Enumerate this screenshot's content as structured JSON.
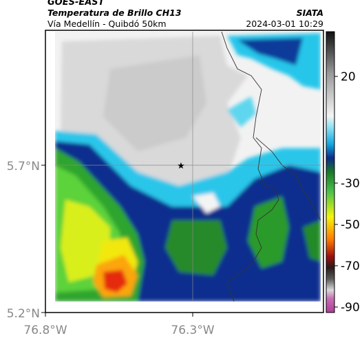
{
  "header": {
    "product": "GOES-EAST",
    "title": "Temperatura de Brillo CH13",
    "source": "SIATA",
    "region": "Vía Medellín - Quibdó 50km",
    "datetime": "2024-03-01 10:29"
  },
  "axes": {
    "x_ticks": [
      "76.8°W",
      "76.3°W"
    ],
    "y_ticks": [
      "5.7°N",
      "5.2°N"
    ]
  },
  "colorbar": {
    "ticks": [
      "20",
      "-30",
      "-50",
      "-70",
      "-90"
    ]
  },
  "map": {
    "marker": "star-icon",
    "colors": {
      "cold_top": "#c0338f",
      "red": "#e52a0f",
      "orange": "#fca50a",
      "yellow": "#f2f20a",
      "green": "#2a9d2a",
      "navy": "#0c2a8a",
      "cyan": "#22c4e8",
      "grey": "#d8d8d8",
      "white": "#f4f4f4"
    }
  }
}
